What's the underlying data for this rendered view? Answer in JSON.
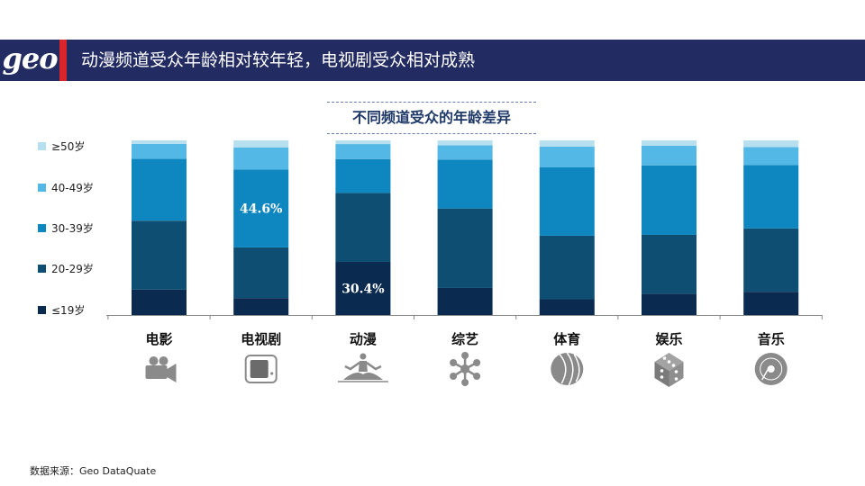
{
  "header": {
    "logo": "geo",
    "title": "动漫频道受众年龄相对较年轻，电视剧受众相对成熟"
  },
  "source": "数据来源：Geo DataQuate",
  "chart_data": {
    "type": "bar",
    "stacked": true,
    "normalized": true,
    "title": "不同频道受众的年龄差异",
    "categories": [
      "电影",
      "电视剧",
      "动漫",
      "综艺",
      "体育",
      "娱乐",
      "音乐"
    ],
    "category_icons": [
      "video-camera-icon",
      "tv-icon",
      "meditation-icon",
      "network-icon",
      "ball-icon",
      "dice-icon",
      "disc-icon"
    ],
    "ylim": [
      0,
      100
    ],
    "legend_position": "left",
    "series": [
      {
        "name": "≤19岁",
        "color": "#0b2a4f",
        "values": [
          14.5,
          9.7,
          30.4,
          15.5,
          9.0,
          12.2,
          13.3
        ]
      },
      {
        "name": "20-29岁",
        "color": "#0e4e73",
        "values": [
          39.5,
          29.0,
          39.5,
          45.5,
          36.4,
          33.7,
          36.3
        ]
      },
      {
        "name": "30-39岁",
        "color": "#0e86bf",
        "values": [
          35.4,
          44.6,
          19.4,
          28.0,
          39.3,
          39.8,
          36.3
        ]
      },
      {
        "name": "40-49岁",
        "color": "#53b8e5",
        "values": [
          8.6,
          12.7,
          8.6,
          8.2,
          11.7,
          11.2,
          10.3
        ]
      },
      {
        "name": "≥50岁",
        "color": "#b6dff0",
        "values": [
          2.0,
          4.0,
          2.1,
          2.8,
          3.6,
          3.1,
          3.8
        ]
      }
    ],
    "data_labels": [
      {
        "series": "30-39岁",
        "category": "电视剧",
        "text": "44.6%"
      },
      {
        "series": "≤19岁",
        "category": "动漫",
        "text": "30.4%"
      }
    ]
  }
}
